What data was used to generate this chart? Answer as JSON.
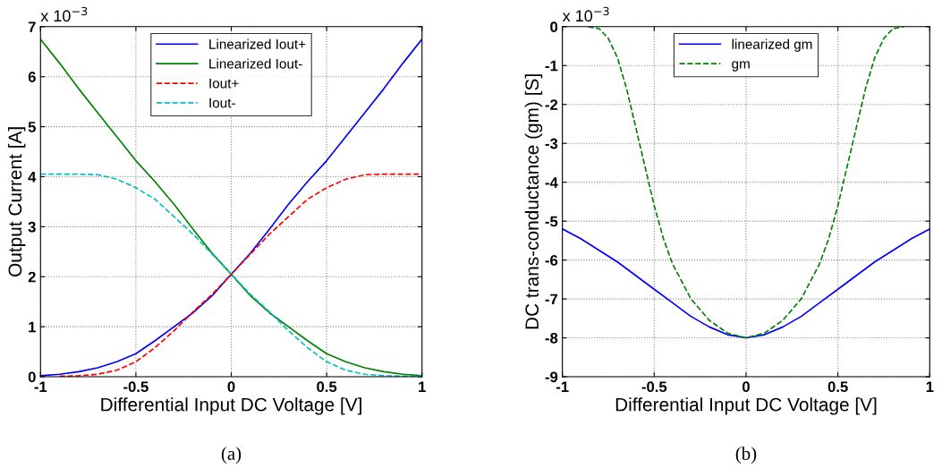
{
  "chart_data": [
    {
      "type": "line",
      "xlabel": "Differential Input DC Voltage [V]",
      "ylabel": "Output Current [A]",
      "annotations": [
        "x 10$^{−3}$",
        "(a)"
      ],
      "x": [
        -1,
        -0.9,
        -0.8,
        -0.7,
        -0.6,
        -0.5,
        -0.4,
        -0.3,
        -0.2,
        -0.1,
        0,
        0.1,
        0.2,
        0.3,
        0.4,
        0.5,
        0.6,
        0.7,
        0.8,
        0.9,
        1
      ],
      "series": [
        {
          "name": "Linearized Iout+",
          "color": "#0000ff",
          "line_style": "solid",
          "values": [
            0.02,
            0.05,
            0.1,
            0.18,
            0.3,
            0.46,
            0.72,
            1.0,
            1.28,
            1.62,
            2.05,
            2.47,
            2.95,
            3.45,
            3.9,
            4.32,
            4.8,
            5.28,
            5.76,
            6.27,
            6.75
          ]
        },
        {
          "name": "Linearized Iout-",
          "color": "#008000",
          "line_style": "solid",
          "values": [
            6.75,
            6.27,
            5.76,
            5.28,
            4.8,
            4.32,
            3.9,
            3.45,
            2.95,
            2.47,
            2.05,
            1.62,
            1.28,
            1.0,
            0.72,
            0.46,
            0.3,
            0.18,
            0.1,
            0.05,
            0.02
          ]
        },
        {
          "name": "Iout+",
          "color": "#ff0000",
          "line_style": "dashed",
          "values": [
            null,
            0.01,
            0.02,
            0.05,
            0.13,
            0.3,
            0.58,
            0.92,
            1.3,
            1.65,
            2.05,
            2.45,
            2.85,
            3.2,
            3.55,
            3.78,
            3.95,
            4.04,
            4.05,
            4.05,
            4.05
          ]
        },
        {
          "name": "Iout-",
          "color": "#00bfbf",
          "line_style": "dashed",
          "values": [
            4.05,
            4.05,
            4.05,
            4.04,
            3.95,
            3.78,
            3.55,
            3.2,
            2.85,
            2.45,
            2.05,
            1.65,
            1.3,
            0.92,
            0.58,
            0.3,
            0.13,
            0.05,
            0.02,
            0.01,
            0.01
          ]
        }
      ],
      "xlim": [
        -1,
        1
      ],
      "xticks": [
        -1,
        -0.5,
        0,
        0.5,
        1
      ],
      "ylim": [
        0,
        7
      ],
      "yticks": [
        0,
        1,
        2,
        3,
        4,
        5,
        6,
        7
      ],
      "grid": true,
      "legend": "top",
      "marker": "none"
    },
    {
      "type": "line",
      "xlabel": "Differential Input DC Voltage [V]",
      "ylabel": "DC trans-conductance (gm) [S]",
      "annotations": [
        "x 10$^{−3}$",
        "(b)"
      ],
      "series": [
        {
          "name": "linearized gm",
          "color": "#0000ff",
          "line_style": "solid",
          "x": [
            -1,
            -0.9,
            -0.8,
            -0.7,
            -0.6,
            -0.5,
            -0.4,
            -0.3,
            -0.2,
            -0.1,
            0,
            0.1,
            0.2,
            0.3,
            0.4,
            0.5,
            0.6,
            0.7,
            0.8,
            0.9,
            1
          ],
          "values": [
            -5.2,
            -5.45,
            -5.75,
            -6.05,
            -6.4,
            -6.75,
            -7.1,
            -7.45,
            -7.72,
            -7.92,
            -8.0,
            -7.92,
            -7.72,
            -7.45,
            -7.1,
            -6.75,
            -6.4,
            -6.05,
            -5.75,
            -5.45,
            -5.2
          ]
        },
        {
          "name": "gm",
          "color": "#008000",
          "line_style": "dashed",
          "x": [
            -0.86,
            -0.8,
            -0.75,
            -0.7,
            -0.65,
            -0.6,
            -0.55,
            -0.5,
            -0.45,
            -0.4,
            -0.3,
            -0.2,
            -0.1,
            0,
            0.1,
            0.2,
            0.3,
            0.4,
            0.45,
            0.5,
            0.55,
            0.6,
            0.65,
            0.7,
            0.75,
            0.8,
            0.86
          ],
          "values": [
            0,
            -0.05,
            -0.3,
            -0.8,
            -1.6,
            -2.6,
            -3.6,
            -4.6,
            -5.45,
            -6.1,
            -7.0,
            -7.55,
            -7.88,
            -8.0,
            -7.88,
            -7.55,
            -7.0,
            -6.1,
            -5.45,
            -4.6,
            -3.6,
            -2.6,
            -1.6,
            -0.8,
            -0.3,
            -0.05,
            0
          ]
        }
      ],
      "xlim": [
        -1,
        1
      ],
      "xticks": [
        -1,
        -0.5,
        0,
        0.5,
        1
      ],
      "ylim": [
        -9,
        0
      ],
      "yticks": [
        -9,
        -8,
        -7,
        -6,
        -5,
        -4,
        -3,
        -2,
        -1,
        0
      ],
      "grid": true,
      "legend": "top",
      "marker": "none"
    }
  ]
}
